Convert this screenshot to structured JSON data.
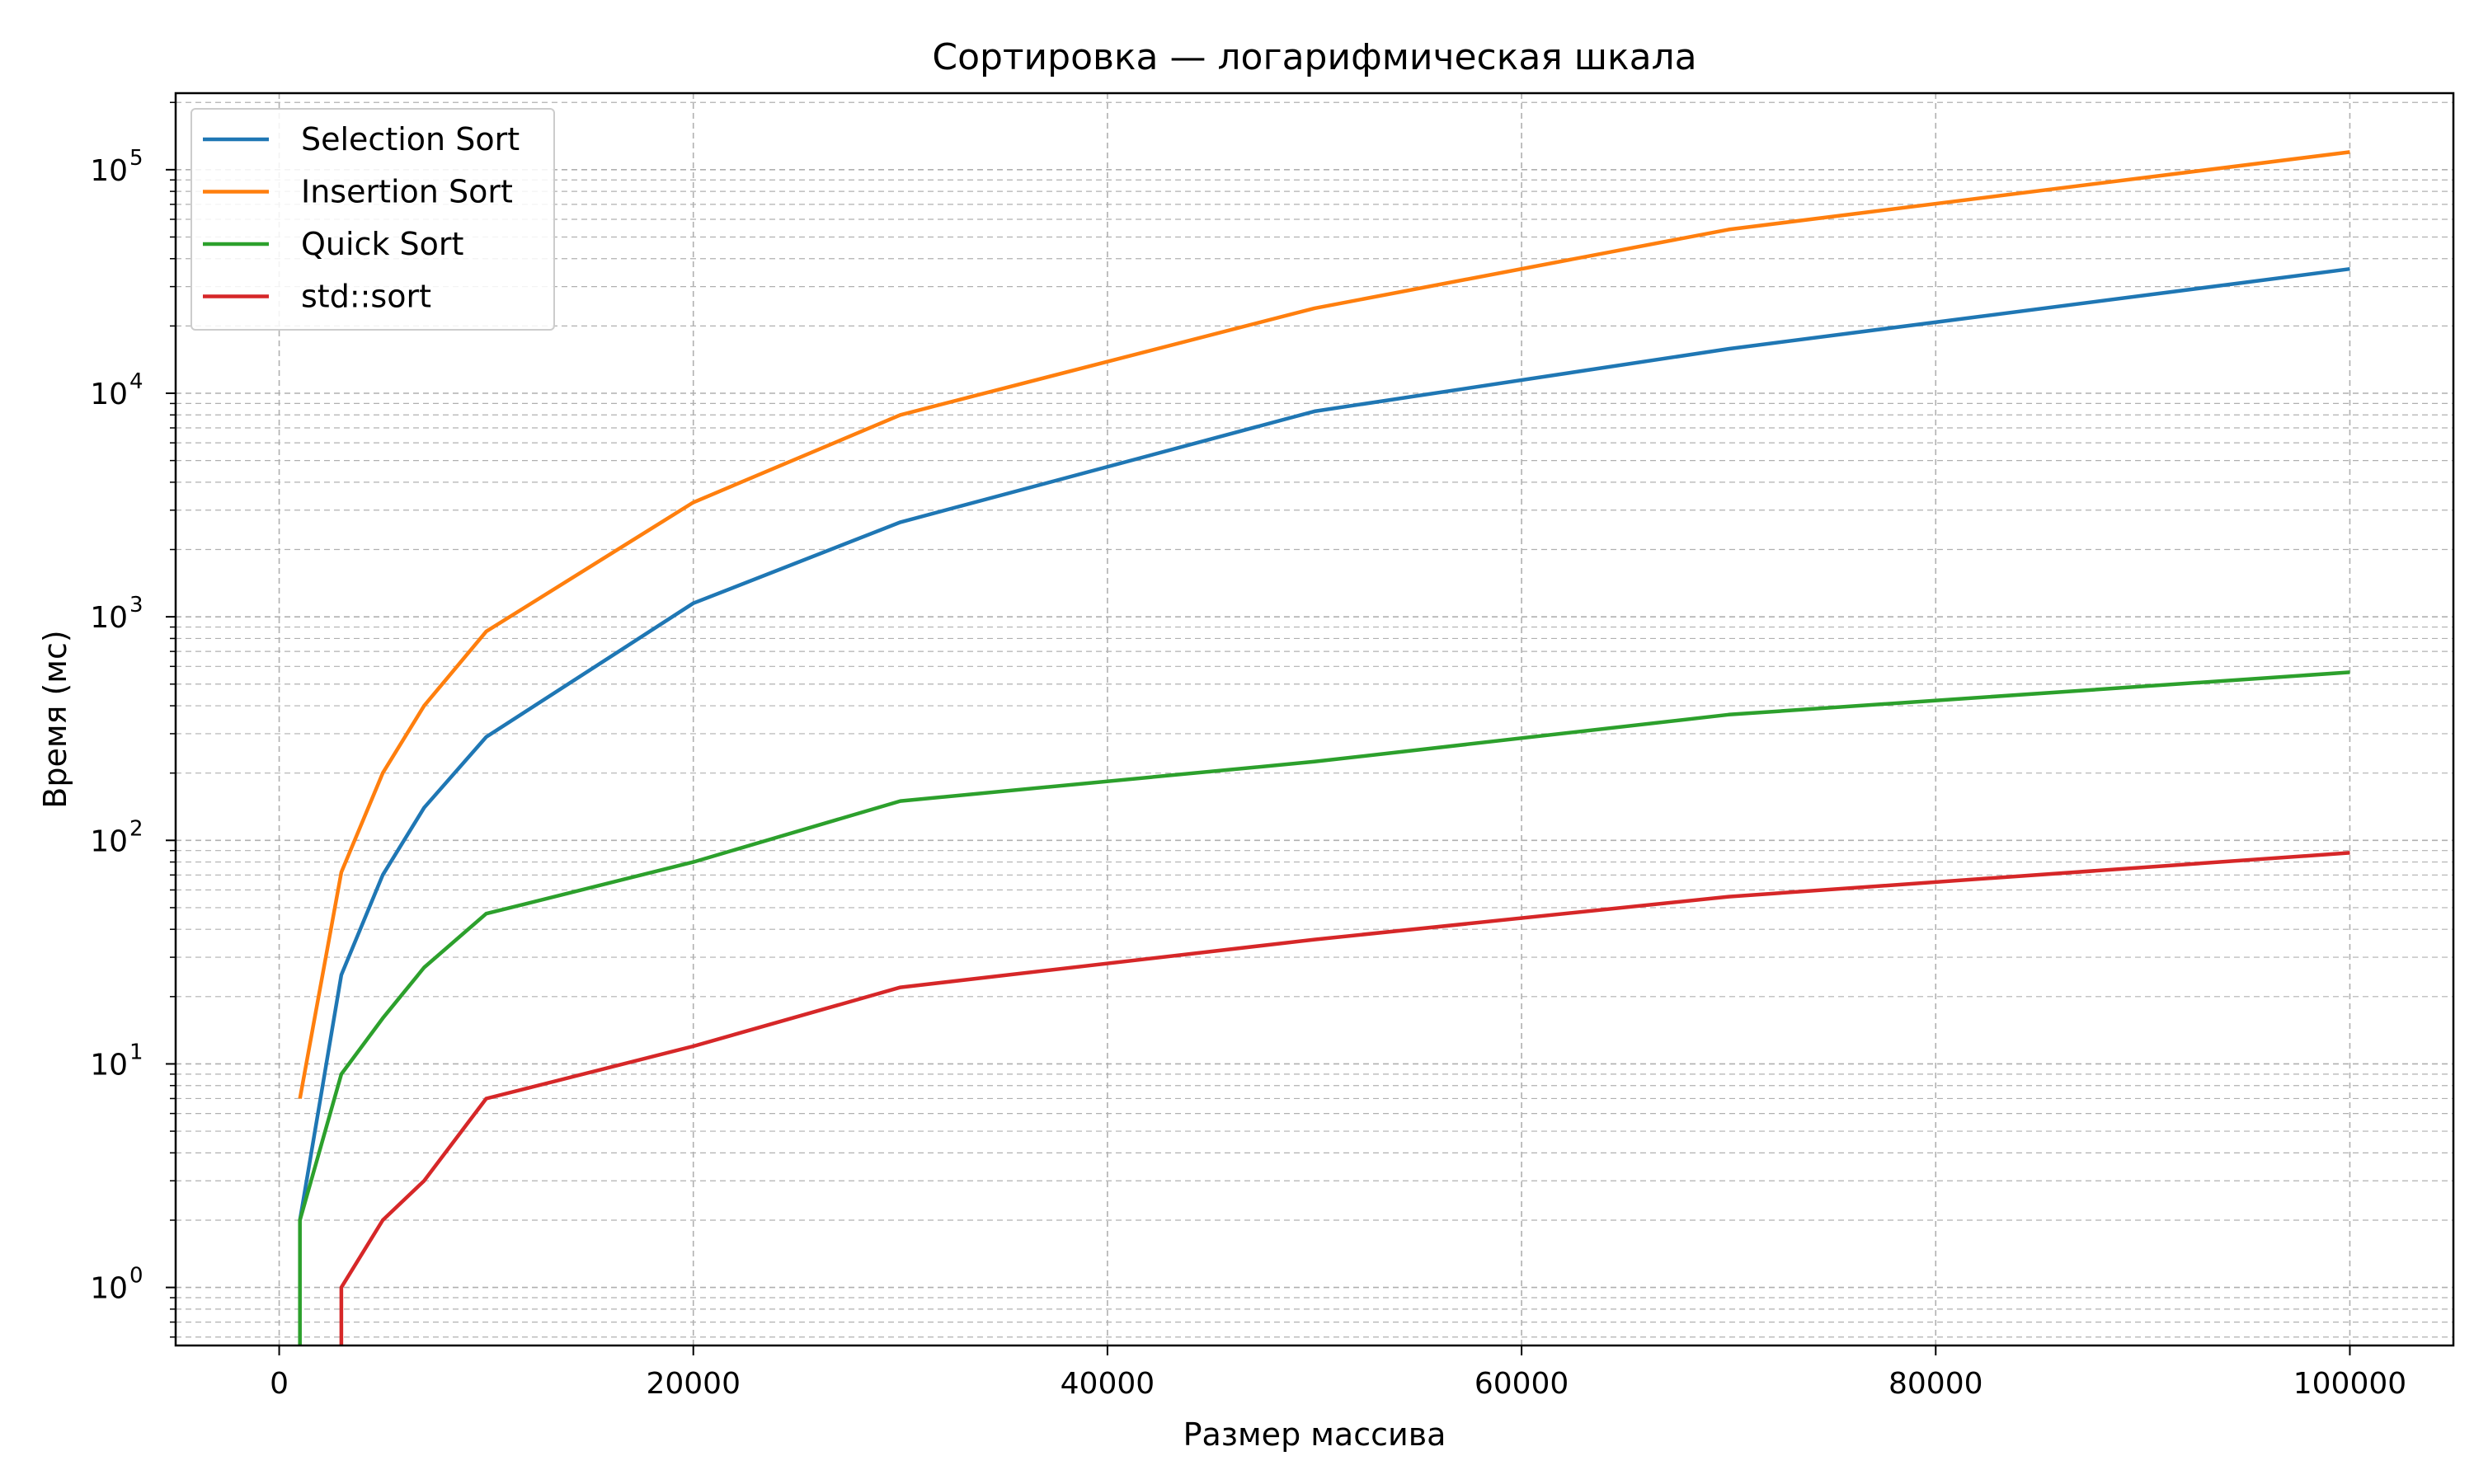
{
  "chart_data": {
    "type": "line",
    "title": "Сортировка — логарифмическая шкала",
    "xlabel": "Размер массива",
    "ylabel": "Время (мс)",
    "x_scale": "linear",
    "y_scale": "log",
    "xlim": [
      -5000,
      105000
    ],
    "ylim": [
      0.55,
      220000
    ],
    "x_ticks": [
      0,
      20000,
      40000,
      60000,
      80000,
      100000
    ],
    "x_tick_labels": [
      "0",
      "20000",
      "40000",
      "60000",
      "80000",
      "100000"
    ],
    "y_ticks": [
      1,
      10,
      100,
      1000,
      10000,
      100000
    ],
    "y_tick_labels": [
      {
        "base": "10",
        "exp": "0"
      },
      {
        "base": "10",
        "exp": "1"
      },
      {
        "base": "10",
        "exp": "2"
      },
      {
        "base": "10",
        "exp": "3"
      },
      {
        "base": "10",
        "exp": "4"
      },
      {
        "base": "10",
        "exp": "5"
      }
    ],
    "grid": true,
    "minor_grid": true,
    "legend_position": "top-left",
    "series": [
      {
        "name": "Selection Sort",
        "color": "#1f77b4",
        "x": [
          1000,
          3000,
          5000,
          7000,
          10000,
          20000,
          30000,
          50000,
          70000,
          100000
        ],
        "y": [
          2,
          25,
          70,
          140,
          290,
          1150,
          2650,
          8300,
          15800,
          36000
        ]
      },
      {
        "name": "Insertion Sort",
        "color": "#ff7f0e",
        "x": [
          1000,
          3000,
          5000,
          7000,
          10000,
          20000,
          30000,
          50000,
          70000,
          100000
        ],
        "y": [
          7,
          72,
          200,
          400,
          860,
          3250,
          8000,
          24000,
          54000,
          120000
        ]
      },
      {
        "name": "Quick Sort",
        "color": "#2ca02c",
        "x": [
          1000,
          1000,
          3000,
          5000,
          7000,
          10000,
          20000,
          30000,
          50000,
          70000,
          100000
        ],
        "y": [
          0.3,
          2,
          9,
          16,
          27,
          47,
          80,
          150,
          225,
          365,
          565
        ]
      },
      {
        "name": "std::sort",
        "color": "#d62728",
        "x": [
          3000,
          3000,
          5000,
          7000,
          10000,
          20000,
          30000,
          50000,
          70000,
          100000
        ],
        "y": [
          0.3,
          1,
          2,
          3,
          7,
          12,
          22,
          36,
          56,
          88
        ]
      }
    ]
  }
}
